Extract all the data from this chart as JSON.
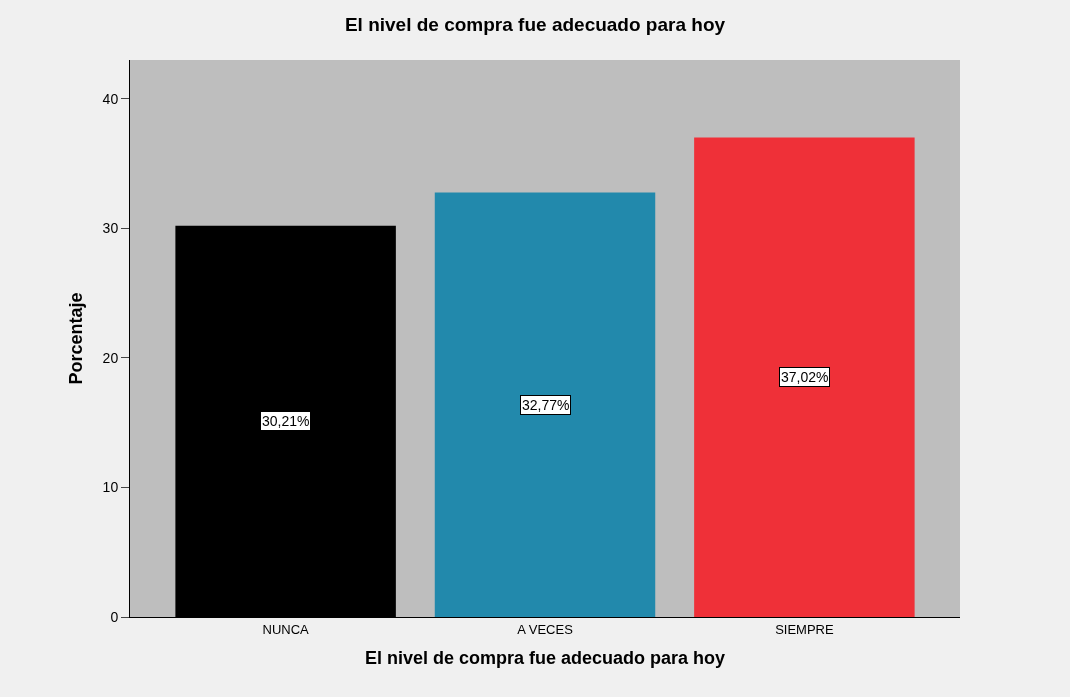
{
  "chart_data": {
    "type": "bar",
    "title": "El nivel de compra fue adecuado para hoy",
    "xlabel": "El nivel de compra fue adecuado para hoy",
    "ylabel": "Porcentaje",
    "categories": [
      "NUNCA",
      "A VECES",
      "SIEMPRE"
    ],
    "values": [
      30.21,
      32.77,
      37.02
    ],
    "value_labels": [
      "30,21%",
      "32,77%",
      "37,02%"
    ],
    "colors": [
      "#000000",
      "#2289ac",
      "#ef3038"
    ],
    "ylim": [
      0,
      43
    ],
    "yticks": [
      0,
      10,
      20,
      30,
      40
    ],
    "grid": false,
    "legend": false
  }
}
